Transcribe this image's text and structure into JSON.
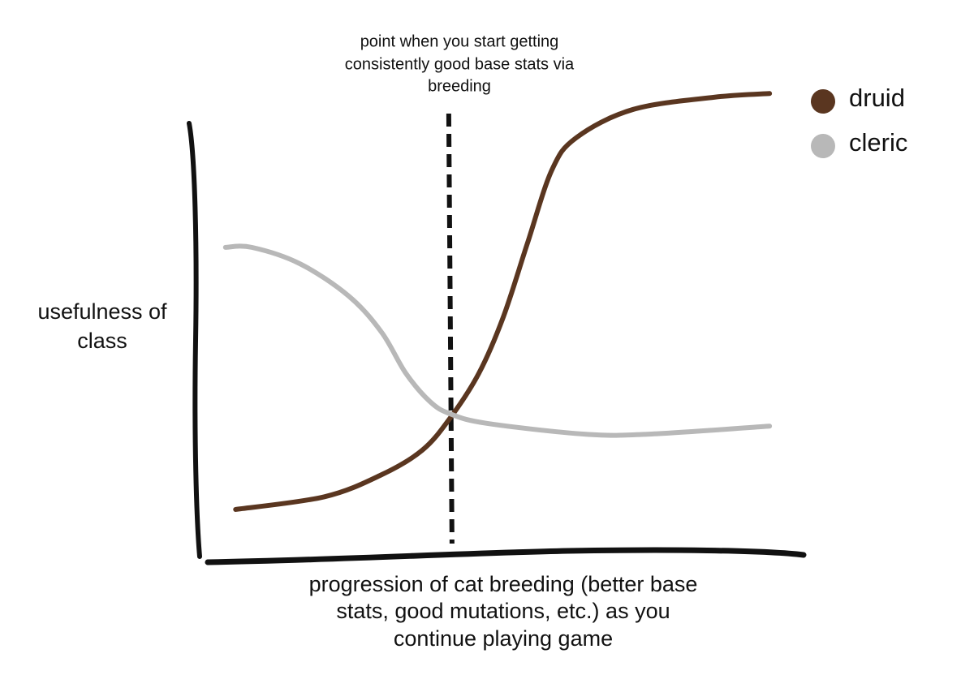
{
  "chart_data": {
    "type": "line",
    "annotation": {
      "lines": [
        "point when you start getting",
        "consistently good base stats via",
        "breeding"
      ],
      "x": 40.8
    },
    "ylabel": [
      "usefulness of",
      "class"
    ],
    "xlabel": [
      "progression of cat breeding (better base",
      "stats, good mutations, etc.) as you",
      "continue playing game"
    ],
    "xlim": [
      0,
      100
    ],
    "ylim": [
      0,
      100
    ],
    "series": [
      {
        "name": "druid",
        "color": "#5a3620",
        "x": [
          4.8,
          19.7,
          29.3,
          36.1,
          40.8,
          45.6,
          49.7,
          53.7,
          57.8,
          61.9,
          71.4,
          85.0,
          94.3
        ],
        "values": [
          10.7,
          13.4,
          18.1,
          23.3,
          30.2,
          39.7,
          51.7,
          67.2,
          82.8,
          89.7,
          95.7,
          98.3,
          99.1
        ]
      },
      {
        "name": "cleric",
        "color": "#b8b8b8",
        "x": [
          3.1,
          7.5,
          15.6,
          23.8,
          29.3,
          33.3,
          37.4,
          40.8,
          46.9,
          63.3,
          74.1,
          94.3
        ],
        "values": [
          66.4,
          66.4,
          62.9,
          56.0,
          48.3,
          39.7,
          33.6,
          31.0,
          29.0,
          26.7,
          26.7,
          28.4
        ]
      }
    ]
  }
}
